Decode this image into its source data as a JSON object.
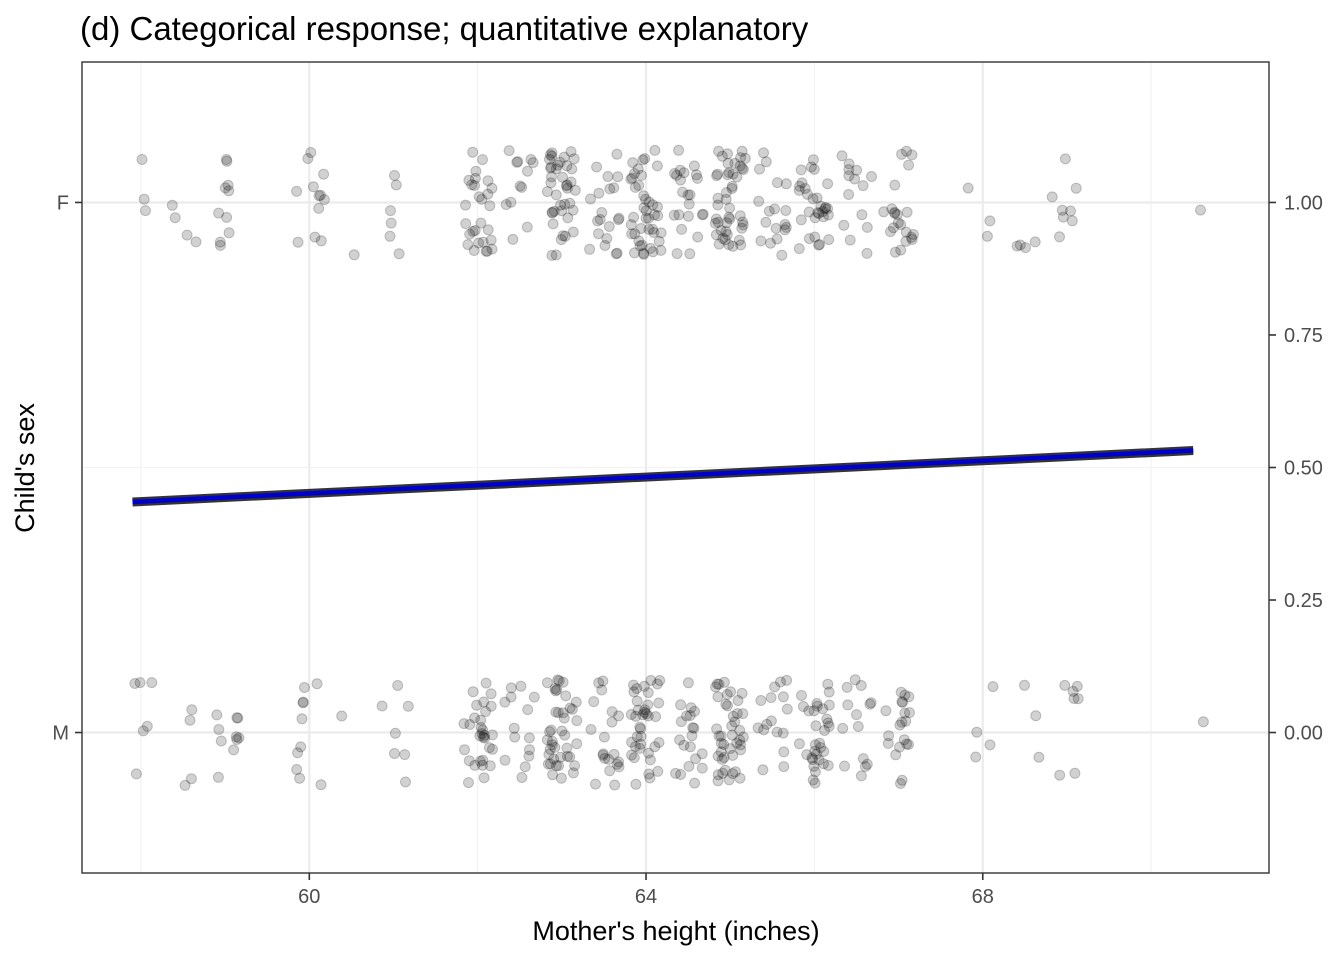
{
  "chart_data": {
    "type": "scatter",
    "title": "(d) Categorical response; quantitative explanatory",
    "xlabel": "Mother's height (inches)",
    "ylabel": "Child's sex",
    "xlim": [
      57.3,
      71.4
    ],
    "ylim": [
      -0.265,
      1.265
    ],
    "x_ticks": [
      60,
      64,
      68
    ],
    "x_tick_labels": [
      "60",
      "64",
      "68"
    ],
    "y_left_ticks": [
      0,
      1
    ],
    "y_left_tick_labels": [
      "M",
      "F"
    ],
    "y_right_ticks": [
      0,
      0.25,
      0.5,
      0.75,
      1
    ],
    "y_right_tick_labels": [
      "0.00",
      "0.25",
      "0.50",
      "0.75",
      "1.00"
    ],
    "grid": true,
    "series": [
      {
        "kind": "points",
        "jitter": {
          "x": 0.18,
          "y": 0.1
        },
        "groups": [
          {
            "category": "F",
            "y": 1,
            "mother_heights": [
              [
                58,
                3
              ],
              [
                58.5,
                4
              ],
              [
                59,
                10
              ],
              [
                60,
                12
              ],
              [
                60.5,
                1
              ],
              [
                61,
                6
              ],
              [
                62,
                28
              ],
              [
                62.5,
                12
              ],
              [
                63,
                40
              ],
              [
                63.5,
                20
              ],
              [
                64,
                42
              ],
              [
                64.5,
                22
              ],
              [
                65,
                45
              ],
              [
                65.5,
                18
              ],
              [
                66,
                30
              ],
              [
                66.5,
                14
              ],
              [
                67,
                22
              ],
              [
                68,
                3
              ],
              [
                68.5,
                4
              ],
              [
                69,
                8
              ],
              [
                70.5,
                1
              ]
            ]
          },
          {
            "category": "M",
            "y": 0,
            "mother_heights": [
              [
                58,
                6
              ],
              [
                58.5,
                4
              ],
              [
                59,
                10
              ],
              [
                60,
                10
              ],
              [
                60.5,
                1
              ],
              [
                61,
                7
              ],
              [
                62,
                30
              ],
              [
                62.5,
                14
              ],
              [
                63,
                40
              ],
              [
                63.5,
                20
              ],
              [
                64,
                38
              ],
              [
                64.5,
                20
              ],
              [
                65,
                42
              ],
              [
                65.5,
                16
              ],
              [
                66,
                32
              ],
              [
                66.5,
                14
              ],
              [
                67,
                20
              ],
              [
                68,
                4
              ],
              [
                68.5,
                3
              ],
              [
                69,
                7
              ],
              [
                70.5,
                1
              ]
            ]
          }
        ]
      },
      {
        "kind": "fit-line",
        "x": [
          57.9,
          70.5
        ],
        "y": [
          0.435,
          0.532
        ]
      }
    ]
  },
  "colors": {
    "points": "#000000",
    "points_opacity": 0.18,
    "line": "#0000cc",
    "line_outline": "#333333"
  }
}
